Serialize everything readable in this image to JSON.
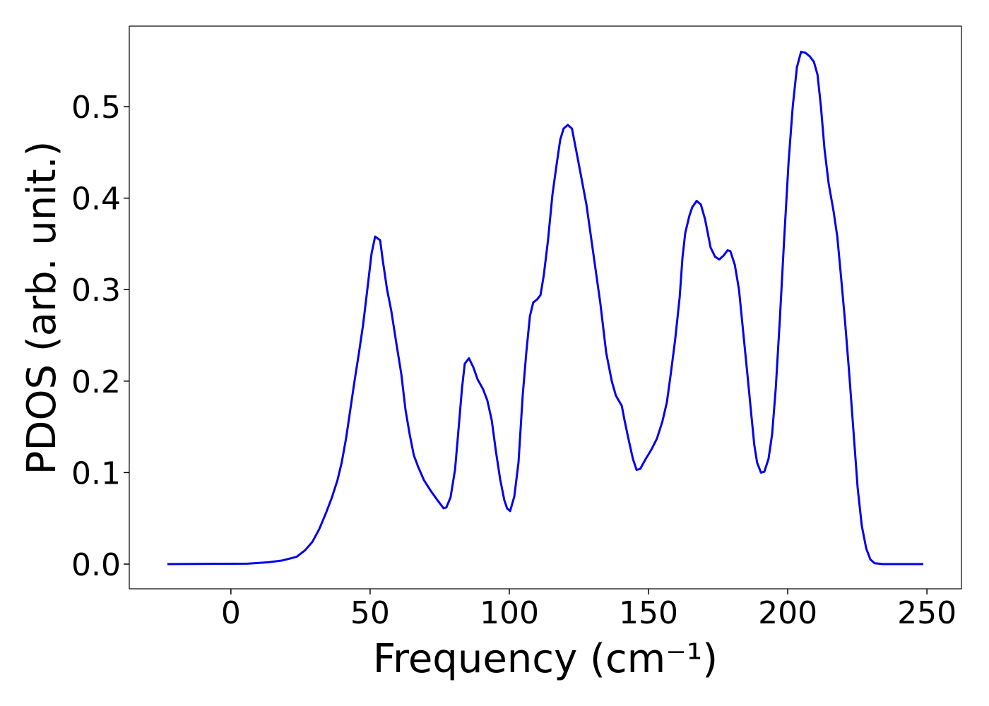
{
  "chart_data": {
    "type": "line",
    "xlabel": "Frequency (cm⁻¹)",
    "ylabel": "PDOS (arb. unit.)",
    "xlim": [
      -36.5,
      262.4
    ],
    "ylim": [
      -0.027,
      0.588
    ],
    "xticks": [
      0,
      50,
      100,
      150,
      200,
      250
    ],
    "yticks": [
      {
        "value": 0,
        "label": "0.0"
      },
      0.1,
      0.2,
      0.3,
      0.4,
      0.5
    ],
    "grid": false,
    "series": [
      {
        "color": "#0000ee",
        "x": [
          -22.8,
          6,
          13.5,
          18.5,
          23.6,
          26.6,
          29.2,
          31.7,
          34.3,
          36.3,
          38.3,
          39.8,
          41.4,
          42.9,
          44.4,
          46,
          47.5,
          49,
          50.5,
          51.8,
          53.6,
          54.6,
          56.1,
          57.6,
          59.6,
          61.2,
          62.7,
          64.2,
          65.7,
          67.3,
          69.3,
          71.8,
          74.4,
          76.4,
          77.4,
          78.9,
          80.5,
          81.5,
          83,
          84,
          85.5,
          87.1,
          88.6,
          90.6,
          92.1,
          93.7,
          95.2,
          96.7,
          98.2,
          99.2,
          100.3,
          101.8,
          103.3,
          104.8,
          106.1,
          107.4,
          108.6,
          109.9,
          111.2,
          112.4,
          113.9,
          115.5,
          117,
          118.3,
          119.5,
          121,
          122.5,
          124.6,
          127.7,
          130.2,
          132.7,
          134.8,
          136.8,
          138.3,
          140.4,
          141.4,
          143,
          144.4,
          145.7,
          147,
          149,
          151,
          153,
          155,
          156.6,
          158,
          159.6,
          161.2,
          162.2,
          163.2,
          164.7,
          165.7,
          167.3,
          168.8,
          170.3,
          172.3,
          173.9,
          175.4,
          176.9,
          178.4,
          179.4,
          181,
          182.5,
          184,
          185.5,
          187,
          188,
          189,
          190.4,
          191.6,
          193.1,
          194.4,
          195.7,
          197.2,
          198.7,
          200.3,
          201.8,
          203.3,
          204.8,
          206.3,
          207.9,
          209.4,
          210.7,
          211.9,
          213.2,
          214.7,
          216.5,
          217.8,
          219,
          220.6,
          222.1,
          223.6,
          225.1,
          226.6,
          228.2,
          229.7,
          231.2,
          234.3,
          248.7
        ],
        "values": [
          0,
          0.0005,
          0.002,
          0.004,
          0.008,
          0.015,
          0.024,
          0.038,
          0.057,
          0.073,
          0.092,
          0.111,
          0.138,
          0.169,
          0.2,
          0.231,
          0.262,
          0.3,
          0.339,
          0.358,
          0.354,
          0.331,
          0.3,
          0.277,
          0.238,
          0.208,
          0.169,
          0.142,
          0.119,
          0.106,
          0.092,
          0.08,
          0.069,
          0.061,
          0.062,
          0.073,
          0.103,
          0.138,
          0.192,
          0.219,
          0.225,
          0.215,
          0.202,
          0.191,
          0.179,
          0.157,
          0.123,
          0.093,
          0.07,
          0.061,
          0.058,
          0.074,
          0.111,
          0.184,
          0.231,
          0.271,
          0.286,
          0.289,
          0.294,
          0.316,
          0.354,
          0.404,
          0.437,
          0.464,
          0.476,
          0.48,
          0.476,
          0.443,
          0.393,
          0.339,
          0.285,
          0.231,
          0.2,
          0.184,
          0.173,
          0.157,
          0.134,
          0.115,
          0.103,
          0.104,
          0.115,
          0.125,
          0.137,
          0.156,
          0.177,
          0.208,
          0.246,
          0.292,
          0.335,
          0.362,
          0.381,
          0.39,
          0.397,
          0.393,
          0.377,
          0.346,
          0.336,
          0.333,
          0.337,
          0.343,
          0.342,
          0.327,
          0.3,
          0.254,
          0.208,
          0.161,
          0.13,
          0.111,
          0.1,
          0.101,
          0.115,
          0.142,
          0.192,
          0.269,
          0.354,
          0.439,
          0.5,
          0.543,
          0.56,
          0.559,
          0.555,
          0.549,
          0.535,
          0.501,
          0.454,
          0.416,
          0.385,
          0.358,
          0.319,
          0.265,
          0.208,
          0.146,
          0.084,
          0.042,
          0.017,
          0.005,
          0.001,
          0,
          0
        ]
      }
    ]
  }
}
